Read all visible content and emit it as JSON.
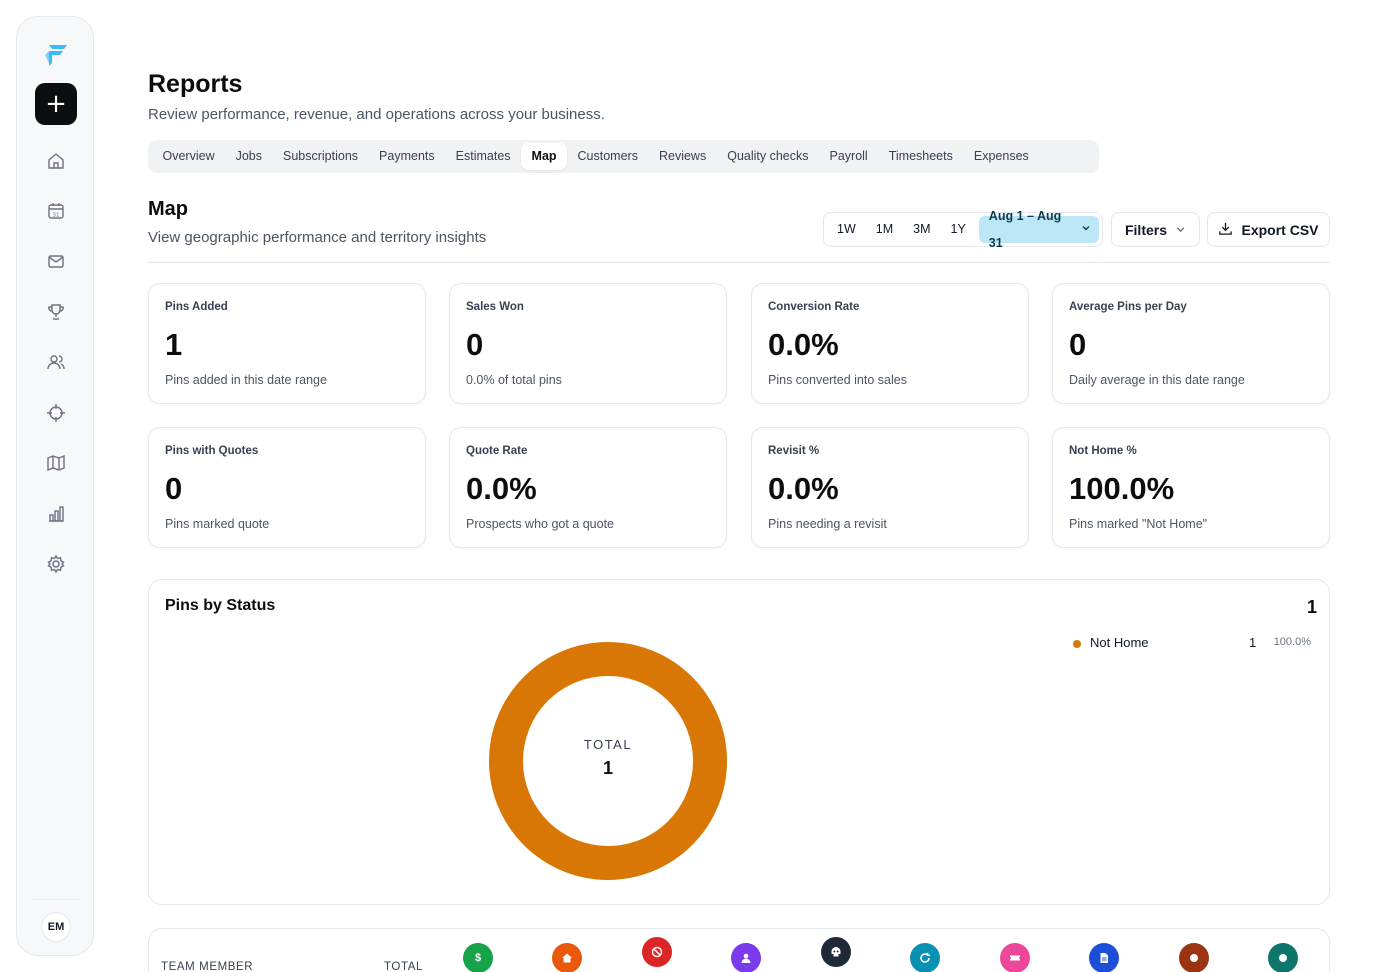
{
  "sidebar": {
    "add_symbol": "+",
    "nav_icons": [
      "home-icon",
      "calendar-icon",
      "mail-icon",
      "trophy-icon",
      "users-icon",
      "target-icon",
      "map-icon",
      "bar-chart-icon",
      "gear-icon"
    ],
    "calendar_day": "31",
    "avatar_initials": "EM"
  },
  "header": {
    "title": "Reports",
    "subtitle": "Review performance, revenue, and operations across your business."
  },
  "tabs": [
    {
      "label": "Overview",
      "active": false
    },
    {
      "label": "Jobs",
      "active": false
    },
    {
      "label": "Subscriptions",
      "active": false
    },
    {
      "label": "Payments",
      "active": false
    },
    {
      "label": "Estimates",
      "active": false
    },
    {
      "label": "Map",
      "active": true
    },
    {
      "label": "Customers",
      "active": false
    },
    {
      "label": "Reviews",
      "active": false
    },
    {
      "label": "Quality checks",
      "active": false
    },
    {
      "label": "Payroll",
      "active": false
    },
    {
      "label": "Timesheets",
      "active": false
    },
    {
      "label": "Expenses",
      "active": false
    }
  ],
  "section": {
    "title": "Map",
    "subtitle": "View geographic performance and territory insights"
  },
  "toolbar": {
    "ranges": [
      "1W",
      "1M",
      "3M",
      "1Y"
    ],
    "date_range": "Aug 1 – Aug 31",
    "filters_label": "Filters",
    "export_label": "Export CSV"
  },
  "stats": [
    {
      "label": "Pins Added",
      "value": "1",
      "caption": "Pins added in this date range"
    },
    {
      "label": "Sales Won",
      "value": "0",
      "caption": "0.0% of total pins"
    },
    {
      "label": "Conversion Rate",
      "value": "0.0%",
      "caption": "Pins converted into sales"
    },
    {
      "label": "Average Pins per Day",
      "value": "0",
      "caption": "Daily average in this date range"
    },
    {
      "label": "Pins with Quotes",
      "value": "0",
      "caption": "Pins marked quote"
    },
    {
      "label": "Quote Rate",
      "value": "0.0%",
      "caption": "Prospects who got a quote"
    },
    {
      "label": "Revisit %",
      "value": "0.0%",
      "caption": "Pins needing a revisit"
    },
    {
      "label": "Not Home %",
      "value": "100.0%",
      "caption": "Pins marked \"Not Home\""
    }
  ],
  "pins_by_status": {
    "title": "Pins by Status",
    "total": "1",
    "center_label": "TOTAL",
    "center_value": "1",
    "legend": [
      {
        "name": "Not Home",
        "count": "1",
        "percent": "100.0%",
        "color": "#d97706"
      }
    ]
  },
  "chart_data": {
    "type": "pie",
    "title": "Pins by Status",
    "categories": [
      "Not Home"
    ],
    "values": [
      1
    ],
    "colors": [
      "#d97706"
    ]
  },
  "team_table": {
    "headers": {
      "member": "TEAM MEMBER",
      "total": "TOTAL"
    },
    "status_icons": [
      {
        "name": "dollar-icon",
        "color": "#16a34a",
        "glyph": "$"
      },
      {
        "name": "house-icon",
        "color": "#ea580c"
      },
      {
        "name": "ban-icon",
        "color": "#dc2626"
      },
      {
        "name": "user-icon",
        "color": "#7c3aed"
      },
      {
        "name": "skull-icon",
        "color": "#1f2937"
      },
      {
        "name": "refresh-icon",
        "color": "#0891b2"
      },
      {
        "name": "ticket-icon",
        "color": "#ec4899"
      },
      {
        "name": "document-icon",
        "color": "#1d4ed8"
      },
      {
        "name": "dot-icon",
        "color": "#9a3412"
      },
      {
        "name": "dot-icon",
        "color": "#0f766e"
      }
    ]
  }
}
